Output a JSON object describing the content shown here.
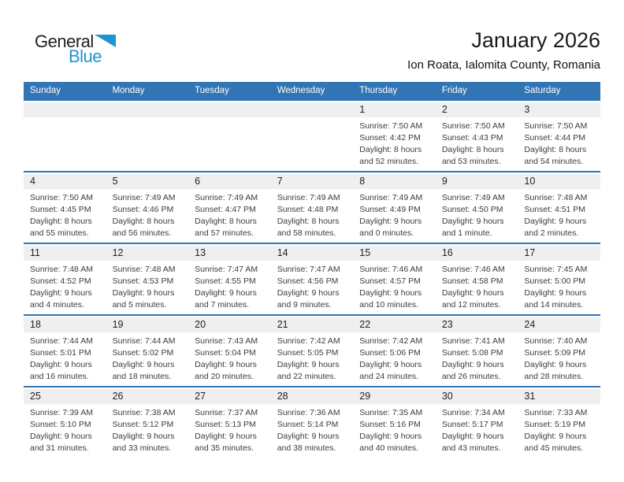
{
  "logo": {
    "part1": "General",
    "part2": "Blue"
  },
  "header": {
    "title": "January 2026",
    "subtitle": "Ion Roata, Ialomita County, Romania"
  },
  "weekdays": [
    "Sunday",
    "Monday",
    "Tuesday",
    "Wednesday",
    "Thursday",
    "Friday",
    "Saturday"
  ],
  "colors": {
    "header_blue": "#3175B5",
    "logo_blue": "#1E95D3",
    "strip_gray": "#EFEFEF"
  },
  "weeks": [
    {
      "days": [
        {
          "num": "",
          "sunrise": "",
          "sunset": "",
          "daylight": ""
        },
        {
          "num": "",
          "sunrise": "",
          "sunset": "",
          "daylight": ""
        },
        {
          "num": "",
          "sunrise": "",
          "sunset": "",
          "daylight": ""
        },
        {
          "num": "",
          "sunrise": "",
          "sunset": "",
          "daylight": ""
        },
        {
          "num": "1",
          "sunrise": "Sunrise: 7:50 AM",
          "sunset": "Sunset: 4:42 PM",
          "daylight": "Daylight: 8 hours and 52 minutes."
        },
        {
          "num": "2",
          "sunrise": "Sunrise: 7:50 AM",
          "sunset": "Sunset: 4:43 PM",
          "daylight": "Daylight: 8 hours and 53 minutes."
        },
        {
          "num": "3",
          "sunrise": "Sunrise: 7:50 AM",
          "sunset": "Sunset: 4:44 PM",
          "daylight": "Daylight: 8 hours and 54 minutes."
        }
      ]
    },
    {
      "days": [
        {
          "num": "4",
          "sunrise": "Sunrise: 7:50 AM",
          "sunset": "Sunset: 4:45 PM",
          "daylight": "Daylight: 8 hours and 55 minutes."
        },
        {
          "num": "5",
          "sunrise": "Sunrise: 7:49 AM",
          "sunset": "Sunset: 4:46 PM",
          "daylight": "Daylight: 8 hours and 56 minutes."
        },
        {
          "num": "6",
          "sunrise": "Sunrise: 7:49 AM",
          "sunset": "Sunset: 4:47 PM",
          "daylight": "Daylight: 8 hours and 57 minutes."
        },
        {
          "num": "7",
          "sunrise": "Sunrise: 7:49 AM",
          "sunset": "Sunset: 4:48 PM",
          "daylight": "Daylight: 8 hours and 58 minutes."
        },
        {
          "num": "8",
          "sunrise": "Sunrise: 7:49 AM",
          "sunset": "Sunset: 4:49 PM",
          "daylight": "Daylight: 9 hours and 0 minutes."
        },
        {
          "num": "9",
          "sunrise": "Sunrise: 7:49 AM",
          "sunset": "Sunset: 4:50 PM",
          "daylight": "Daylight: 9 hours and 1 minute."
        },
        {
          "num": "10",
          "sunrise": "Sunrise: 7:48 AM",
          "sunset": "Sunset: 4:51 PM",
          "daylight": "Daylight: 9 hours and 2 minutes."
        }
      ]
    },
    {
      "days": [
        {
          "num": "11",
          "sunrise": "Sunrise: 7:48 AM",
          "sunset": "Sunset: 4:52 PM",
          "daylight": "Daylight: 9 hours and 4 minutes."
        },
        {
          "num": "12",
          "sunrise": "Sunrise: 7:48 AM",
          "sunset": "Sunset: 4:53 PM",
          "daylight": "Daylight: 9 hours and 5 minutes."
        },
        {
          "num": "13",
          "sunrise": "Sunrise: 7:47 AM",
          "sunset": "Sunset: 4:55 PM",
          "daylight": "Daylight: 9 hours and 7 minutes."
        },
        {
          "num": "14",
          "sunrise": "Sunrise: 7:47 AM",
          "sunset": "Sunset: 4:56 PM",
          "daylight": "Daylight: 9 hours and 9 minutes."
        },
        {
          "num": "15",
          "sunrise": "Sunrise: 7:46 AM",
          "sunset": "Sunset: 4:57 PM",
          "daylight": "Daylight: 9 hours and 10 minutes."
        },
        {
          "num": "16",
          "sunrise": "Sunrise: 7:46 AM",
          "sunset": "Sunset: 4:58 PM",
          "daylight": "Daylight: 9 hours and 12 minutes."
        },
        {
          "num": "17",
          "sunrise": "Sunrise: 7:45 AM",
          "sunset": "Sunset: 5:00 PM",
          "daylight": "Daylight: 9 hours and 14 minutes."
        }
      ]
    },
    {
      "days": [
        {
          "num": "18",
          "sunrise": "Sunrise: 7:44 AM",
          "sunset": "Sunset: 5:01 PM",
          "daylight": "Daylight: 9 hours and 16 minutes."
        },
        {
          "num": "19",
          "sunrise": "Sunrise: 7:44 AM",
          "sunset": "Sunset: 5:02 PM",
          "daylight": "Daylight: 9 hours and 18 minutes."
        },
        {
          "num": "20",
          "sunrise": "Sunrise: 7:43 AM",
          "sunset": "Sunset: 5:04 PM",
          "daylight": "Daylight: 9 hours and 20 minutes."
        },
        {
          "num": "21",
          "sunrise": "Sunrise: 7:42 AM",
          "sunset": "Sunset: 5:05 PM",
          "daylight": "Daylight: 9 hours and 22 minutes."
        },
        {
          "num": "22",
          "sunrise": "Sunrise: 7:42 AM",
          "sunset": "Sunset: 5:06 PM",
          "daylight": "Daylight: 9 hours and 24 minutes."
        },
        {
          "num": "23",
          "sunrise": "Sunrise: 7:41 AM",
          "sunset": "Sunset: 5:08 PM",
          "daylight": "Daylight: 9 hours and 26 minutes."
        },
        {
          "num": "24",
          "sunrise": "Sunrise: 7:40 AM",
          "sunset": "Sunset: 5:09 PM",
          "daylight": "Daylight: 9 hours and 28 minutes."
        }
      ]
    },
    {
      "days": [
        {
          "num": "25",
          "sunrise": "Sunrise: 7:39 AM",
          "sunset": "Sunset: 5:10 PM",
          "daylight": "Daylight: 9 hours and 31 minutes."
        },
        {
          "num": "26",
          "sunrise": "Sunrise: 7:38 AM",
          "sunset": "Sunset: 5:12 PM",
          "daylight": "Daylight: 9 hours and 33 minutes."
        },
        {
          "num": "27",
          "sunrise": "Sunrise: 7:37 AM",
          "sunset": "Sunset: 5:13 PM",
          "daylight": "Daylight: 9 hours and 35 minutes."
        },
        {
          "num": "28",
          "sunrise": "Sunrise: 7:36 AM",
          "sunset": "Sunset: 5:14 PM",
          "daylight": "Daylight: 9 hours and 38 minutes."
        },
        {
          "num": "29",
          "sunrise": "Sunrise: 7:35 AM",
          "sunset": "Sunset: 5:16 PM",
          "daylight": "Daylight: 9 hours and 40 minutes."
        },
        {
          "num": "30",
          "sunrise": "Sunrise: 7:34 AM",
          "sunset": "Sunset: 5:17 PM",
          "daylight": "Daylight: 9 hours and 43 minutes."
        },
        {
          "num": "31",
          "sunrise": "Sunrise: 7:33 AM",
          "sunset": "Sunset: 5:19 PM",
          "daylight": "Daylight: 9 hours and 45 minutes."
        }
      ]
    }
  ]
}
